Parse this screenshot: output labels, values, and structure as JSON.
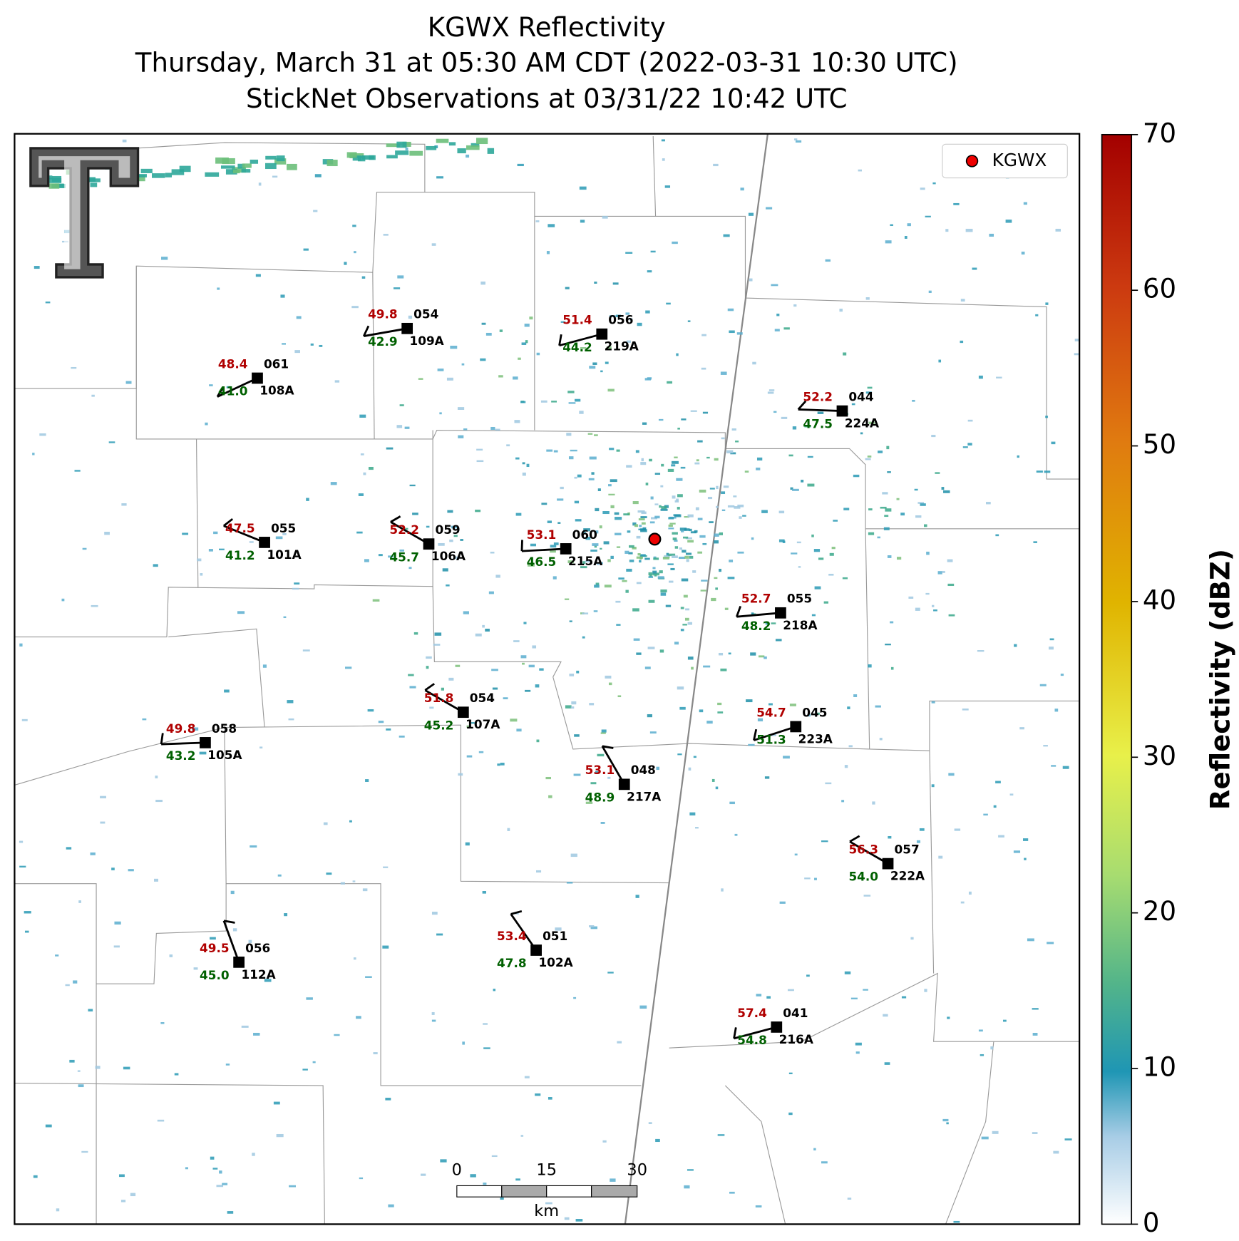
{
  "title": [
    "KGWX Reflectivity",
    "Thursday, March 31 at 05:30 AM CDT (2022-03-31 10:30 UTC)",
    "StickNet Observations at 03/31/22 10:42 UTC"
  ],
  "legend": "KGWX",
  "colorbar": {
    "label": "Reflectivity (dBZ)",
    "lim": [
      0,
      70
    ],
    "ticks": [
      0,
      10,
      20,
      30,
      40,
      50,
      60,
      70
    ]
  },
  "scale_bar": {
    "ticks": [
      "0",
      "15",
      "30"
    ],
    "unit": "km"
  },
  "stations": [
    {
      "id": "109A",
      "temp": "49.8",
      "dew": "42.9",
      "pres": "054"
    },
    {
      "id": "219A",
      "temp": "51.4",
      "dew": "44.2",
      "pres": "056"
    },
    {
      "id": "108A",
      "temp": "48.4",
      "dew": "41.0",
      "pres": "061"
    },
    {
      "id": "224A",
      "temp": "52.2",
      "dew": "47.5",
      "pres": "044"
    },
    {
      "id": "101A",
      "temp": "47.5",
      "dew": "41.2",
      "pres": "055"
    },
    {
      "id": "106A",
      "temp": "52.2",
      "dew": "45.7",
      "pres": "059"
    },
    {
      "id": "215A",
      "temp": "53.1",
      "dew": "46.5",
      "pres": "060"
    },
    {
      "id": "218A",
      "temp": "52.7",
      "dew": "48.2",
      "pres": "055"
    },
    {
      "id": "107A",
      "temp": "51.8",
      "dew": "45.2",
      "pres": "054"
    },
    {
      "id": "105A",
      "temp": "49.8",
      "dew": "43.2",
      "pres": "058"
    },
    {
      "id": "223A",
      "temp": "54.7",
      "dew": "51.3",
      "pres": "045"
    },
    {
      "id": "217A",
      "temp": "53.1",
      "dew": "48.9",
      "pres": "048"
    },
    {
      "id": "222A",
      "temp": "56.3",
      "dew": "54.0",
      "pres": "057"
    },
    {
      "id": "102A",
      "temp": "53.4",
      "dew": "47.8",
      "pres": "051"
    },
    {
      "id": "112A",
      "temp": "49.5",
      "dew": "45.0",
      "pres": "056"
    },
    {
      "id": "216A",
      "temp": "57.4",
      "dew": "54.8",
      "pres": "041"
    }
  ]
}
